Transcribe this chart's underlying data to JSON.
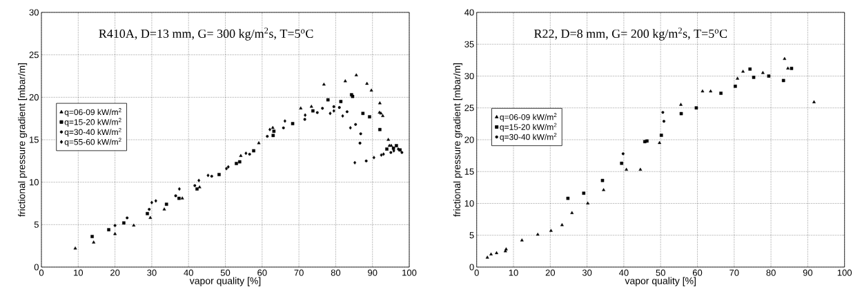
{
  "chart_data": [
    {
      "type": "scatter",
      "xlabel": "vapor quality [%]",
      "ylabel": "frictional pressure gradient [mbar/m]",
      "annotations": [
        "R410A, D=13 mm, G= 300 kg/m$^{2}$s, T=5$^{o}$C"
      ],
      "xlim": [
        0,
        100
      ],
      "ylim": [
        0,
        30
      ],
      "xticks": [
        0,
        10,
        20,
        30,
        40,
        50,
        60,
        70,
        80,
        90,
        100
      ],
      "yticks": [
        0,
        5,
        10,
        15,
        20,
        25,
        30
      ],
      "grid": true,
      "legend": "left",
      "series": [
        {
          "name": "q=06-09 kW/m$^{2}$",
          "color": "#000000",
          "marker": "triangle",
          "x": [
            9.2,
            14.2,
            20.0,
            25.1,
            29.6,
            33.4,
            38.3,
            43.0,
            54.2,
            59.1,
            62.9,
            70.5,
            73.4,
            76.8,
            82.6,
            85.6,
            88.5,
            89.7,
            92.0,
            91.9,
            92.3,
            92.8,
            94.3,
            94.6,
            95.1
          ],
          "values": [
            2.2,
            2.9,
            3.9,
            4.9,
            5.8,
            6.8,
            8.1,
            9.4,
            13.1,
            14.6,
            16.4,
            18.7,
            18.9,
            21.5,
            21.9,
            22.6,
            21.6,
            20.8,
            19.3,
            18.2,
            18.1,
            17.8,
            15.0,
            14.3,
            14.3
          ]
        },
        {
          "name": "q=15-20 kW/m$^{2}$",
          "color": "#000000",
          "marker": "square",
          "x": [
            13.8,
            18.3,
            22.4,
            28.8,
            34.0,
            37.4,
            42.3,
            48.3,
            53.0,
            53.9,
            57.7,
            63.2,
            63.0,
            68.3,
            73.8,
            77.9,
            81.4,
            84.3,
            84.6,
            87.4,
            89.2,
            92.0,
            93.9,
            95.7,
            96.5,
            97.5
          ],
          "values": [
            3.6,
            4.4,
            5.2,
            6.3,
            7.4,
            8.1,
            9.2,
            10.9,
            12.2,
            12.4,
            13.7,
            16.0,
            15.5,
            16.9,
            18.4,
            19.7,
            19.5,
            20.3,
            20.1,
            18.1,
            17.7,
            16.2,
            13.9,
            14.0,
            14.3,
            13.8
          ]
        },
        {
          "name": "q=30-40 kW/m$^{2}$",
          "color": "#000000",
          "marker": "circle",
          "x": [
            20.0,
            23.3,
            29.3,
            36.5,
            41.7,
            46.3,
            56.6,
            61.4,
            65.8,
            71.6,
            75.0,
            76.4,
            79.5,
            81.0,
            83.1,
            85.4,
            86.8,
            86.6,
            88.3,
            95.0,
            98.0
          ],
          "values": [
            4.9,
            5.8,
            6.8,
            8.4,
            9.6,
            10.7,
            13.3,
            15.4,
            16.4,
            17.4,
            18.2,
            18.7,
            18.9,
            18.8,
            18.3,
            16.8,
            15.7,
            14.6,
            12.5,
            13.5,
            13.5
          ]
        },
        {
          "name": "q=55-60 kW/m$^{2}$",
          "color": "#000000",
          "marker": "diamond",
          "x": [
            30.0,
            31.1,
            37.5,
            42.8,
            45.3,
            50.3,
            50.8,
            55.6,
            62.1,
            66.2,
            71.7,
            78.5,
            79.5,
            81.9,
            84.0,
            85.2,
            90.4,
            92.4,
            93.0,
            95.8,
            97.0
          ],
          "values": [
            7.6,
            7.8,
            9.2,
            10.2,
            10.8,
            11.6,
            11.8,
            13.4,
            16.2,
            17.2,
            17.9,
            18.1,
            18.4,
            17.8,
            16.4,
            12.3,
            12.9,
            13.2,
            13.3,
            13.7,
            13.9
          ]
        }
      ]
    },
    {
      "type": "scatter",
      "xlabel": "vapor quality [%]",
      "ylabel": "frictional pressure gradient [mbar/m]",
      "annotations": [
        "R22, D=8 mm, G= 200 kg/m$^{2}$s, T=5$^{o}$C"
      ],
      "xlim": [
        0,
        100
      ],
      "ylim": [
        0,
        40
      ],
      "xticks": [
        0,
        10,
        20,
        30,
        40,
        50,
        60,
        70,
        80,
        90,
        100
      ],
      "yticks": [
        0,
        5,
        10,
        15,
        20,
        25,
        30,
        35,
        40
      ],
      "grid": true,
      "legend": "left",
      "series": [
        {
          "name": "q=06-09 kW/m$^{2}$",
          "color": "#000000",
          "marker": "triangle",
          "x": [
            2.9,
            3.9,
            5.4,
            7.8,
            8.0,
            12.3,
            16.6,
            20.2,
            23.2,
            25.9,
            30.2,
            34.5,
            40.7,
            44.5,
            49.7,
            55.5,
            61.4,
            63.6,
            70.9,
            72.4,
            77.8,
            83.7,
            84.6,
            91.7
          ],
          "values": [
            1.5,
            2.0,
            2.2,
            2.5,
            2.8,
            4.2,
            5.1,
            5.7,
            6.6,
            8.5,
            10.0,
            12.1,
            15.3,
            15.3,
            19.5,
            25.5,
            27.6,
            27.6,
            29.6,
            30.7,
            30.5,
            32.7,
            31.2,
            25.9
          ]
        },
        {
          "name": "q=15-20 kW/m$^{2}$",
          "color": "#000000",
          "marker": "square",
          "x": [
            24.8,
            29.1,
            34.2,
            39.4,
            45.7,
            46.3,
            50.2,
            55.6,
            59.7,
            66.4,
            70.3,
            74.3,
            75.3,
            79.4,
            83.4,
            85.6
          ],
          "values": [
            10.8,
            11.6,
            13.6,
            16.3,
            19.7,
            19.8,
            20.7,
            24.1,
            25.0,
            27.3,
            28.4,
            31.1,
            29.8,
            30.0,
            29.3,
            31.2
          ]
        },
        {
          "name": "q=30-40 kW/m$^{2}$",
          "color": "#000000",
          "marker": "circle",
          "x": [
            39.8,
            50.6,
            50.9
          ],
          "values": [
            17.8,
            24.3,
            22.9
          ]
        }
      ]
    }
  ]
}
